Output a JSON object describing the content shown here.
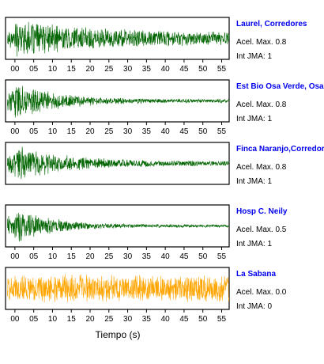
{
  "chart_data": {
    "type": "line",
    "xlabel": "Tiempo (s)",
    "xlim": [
      -2.5,
      57
    ],
    "tick_values": [
      0,
      5,
      10,
      15,
      20,
      25,
      30,
      35,
      40,
      45,
      50,
      55
    ],
    "tick_labels": [
      "00",
      "05",
      "10",
      "15",
      "20",
      "25",
      "30",
      "35",
      "40",
      "45",
      "50",
      "55"
    ],
    "station_color": "#0000ee",
    "panels": [
      {
        "station": "Laurel, Corredores",
        "acel": "Acel. Max. 0.8",
        "jma": "Int JMA: 1",
        "color": "#006400",
        "decay": 28,
        "noise": 0.28,
        "ticks_below": true
      },
      {
        "station": "Est Bio Osa Verde, Osa",
        "acel": "Acel. Max. 0.8",
        "jma": "Int JMA: 1",
        "color": "#006400",
        "decay": 12,
        "noise": 0.1,
        "ticks_below": true
      },
      {
        "station": "Finca Naranjo,Corredores",
        "acel": "Acel. Max. 0.8",
        "jma": "Int JMA: 1",
        "color": "#006400",
        "decay": 14,
        "noise": 0.12,
        "ticks_below": false
      },
      {
        "station": "Hosp C. Neily",
        "acel": "Acel. Max. 0.5",
        "jma": "Int JMA: 1",
        "color": "#006400",
        "decay": 10,
        "noise": 0.08,
        "ticks_below": true
      },
      {
        "station": "La Sabana",
        "acel": "Acel. Max. 0.0",
        "jma": "Int JMA: 0",
        "color": "#ffa500",
        "decay": 0,
        "noise": 0.75,
        "ticks_below": true
      }
    ]
  }
}
